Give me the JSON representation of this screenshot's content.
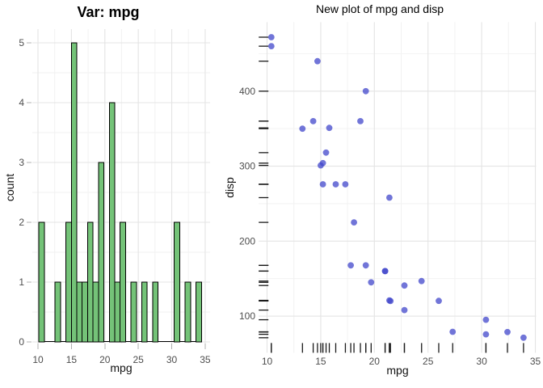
{
  "style": {
    "background": "#ffffff",
    "grid_major": "#e4e4e4",
    "grid_minor": "#f2f2f2",
    "tick_color": "#b0b0b0",
    "axis_text_color": "#4d4d4d",
    "axis_title_color": "#111111",
    "bar_fill": "#74c378",
    "bar_stroke": "#000000",
    "point_fill": "#4247cb",
    "point_opacity": 0.75,
    "rug_color": "#1a1a1a"
  },
  "chart_data": [
    {
      "type": "histogram",
      "title": "Var: mpg",
      "xlabel": "mpg",
      "ylabel": "count",
      "variable": "mpg",
      "bin_start": 10.1293,
      "bin_width": 0.81034,
      "counts": [
        2,
        0,
        0,
        1,
        0,
        2,
        5,
        1,
        1,
        2,
        1,
        3,
        0,
        4,
        1,
        2,
        0,
        1,
        0,
        1,
        0,
        1,
        0,
        0,
        0,
        2,
        0,
        1,
        0,
        1
      ],
      "x_ticks": [
        10,
        15,
        20,
        25,
        30,
        35
      ],
      "y_ticks": [
        0,
        1,
        2,
        3,
        4,
        5
      ],
      "x_minor": [
        12.5,
        17.5,
        22.5,
        27.5,
        32.5
      ],
      "y_minor": [
        0.5,
        1.5,
        2.5,
        3.5,
        4.5
      ],
      "xlim": [
        8.9,
        35.7
      ],
      "ylim": [
        0,
        5.25
      ],
      "grid": "on",
      "legend": "none"
    },
    {
      "type": "scatter",
      "title": "New plot of mpg and disp",
      "xlabel": "mpg",
      "ylabel": "disp",
      "points": [
        [
          21.0,
          160
        ],
        [
          21.0,
          160
        ],
        [
          22.8,
          108
        ],
        [
          21.4,
          258
        ],
        [
          18.7,
          360
        ],
        [
          18.1,
          225
        ],
        [
          14.3,
          360
        ],
        [
          24.4,
          146.7
        ],
        [
          22.8,
          140.8
        ],
        [
          19.2,
          167.6
        ],
        [
          17.8,
          167.6
        ],
        [
          16.4,
          275.8
        ],
        [
          17.3,
          275.8
        ],
        [
          15.2,
          275.8
        ],
        [
          10.4,
          472
        ],
        [
          10.4,
          460
        ],
        [
          14.7,
          440
        ],
        [
          32.4,
          78.7
        ],
        [
          30.4,
          75.7
        ],
        [
          33.9,
          71.1
        ],
        [
          21.5,
          120.1
        ],
        [
          15.5,
          318
        ],
        [
          15.2,
          304
        ],
        [
          13.3,
          350
        ],
        [
          19.2,
          400
        ],
        [
          27.3,
          79
        ],
        [
          26.0,
          120.3
        ],
        [
          30.4,
          95.1
        ],
        [
          15.8,
          351
        ],
        [
          19.7,
          145
        ],
        [
          21.4,
          121
        ],
        [
          15.0,
          301
        ]
      ],
      "x_ticks": [
        10,
        15,
        20,
        25,
        30,
        35
      ],
      "y_ticks": [
        100,
        200,
        300,
        400
      ],
      "x_minor": [
        12.5,
        17.5,
        22.5,
        27.5,
        32.5
      ],
      "y_minor": [
        150,
        250,
        350,
        450
      ],
      "xlim": [
        9.2,
        35.1
      ],
      "ylim": [
        51,
        492
      ],
      "rug_sides": "bottom-left",
      "grid": "on",
      "legend": "none"
    }
  ]
}
